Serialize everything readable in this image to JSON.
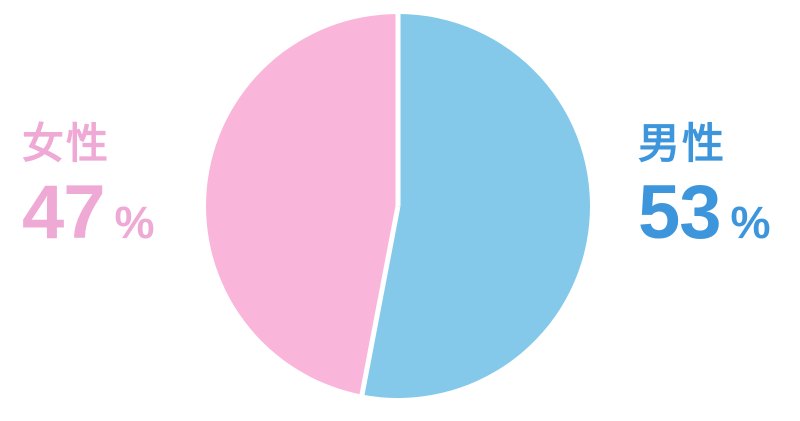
{
  "chart_data": {
    "type": "pie",
    "title": "",
    "unit": "%",
    "start_angle_deg": 0,
    "direction": "clockwise",
    "gap_color": "#FFFFFF",
    "gap_width": 5,
    "series": [
      {
        "id": "male",
        "label": "男性",
        "value": 53,
        "color": "#84C9EA",
        "text_color": "#3D96DC",
        "label_side": "right"
      },
      {
        "id": "female",
        "label": "女性",
        "value": 47,
        "color": "#F9B6DA",
        "text_color": "#EFA9D5",
        "label_side": "left"
      }
    ],
    "legend_position": "sides",
    "background_color": "#FFFFFF"
  }
}
